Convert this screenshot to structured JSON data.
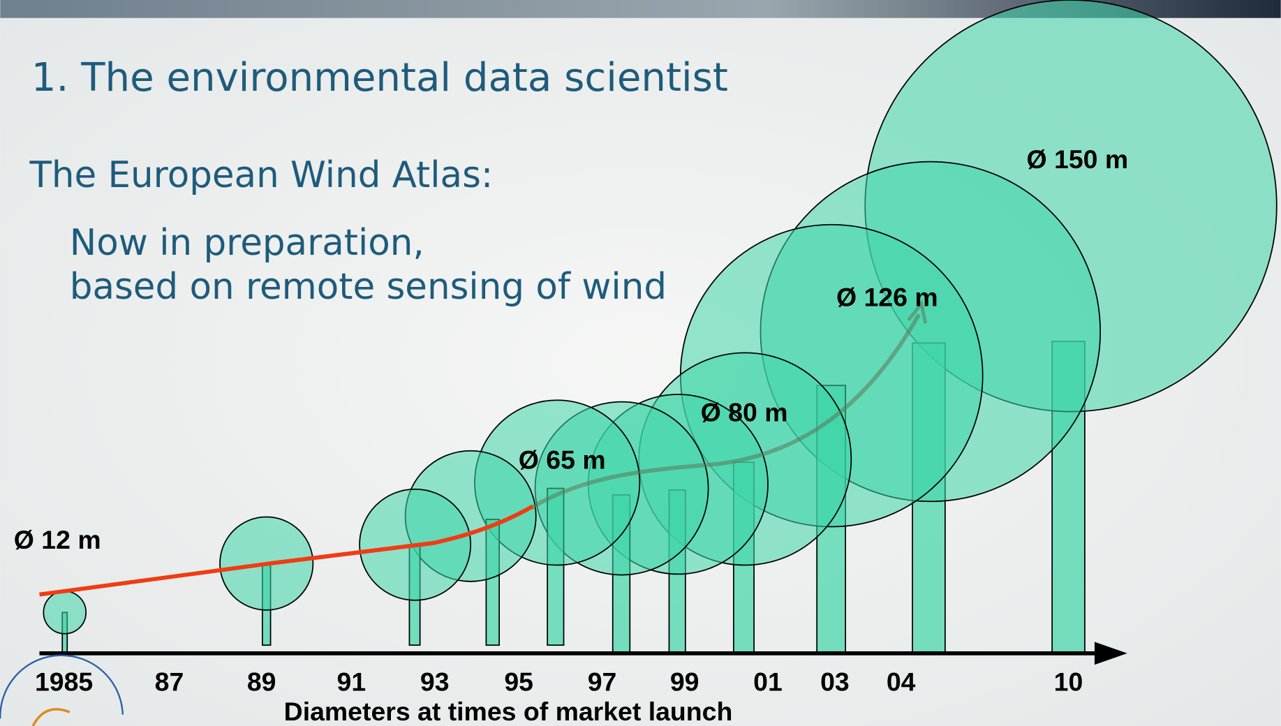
{
  "slide": {
    "title": "1.  The environmental data scientist",
    "heading": "The European Wind Atlas:",
    "body": [
      "Now in preparation,",
      "based on remote sensing of wind"
    ],
    "diagram": {
      "diameter_labels": [
        "Ø 12 m",
        "Ø 65 m",
        "Ø 80 m",
        "Ø 126 m",
        "Ø 150 m"
      ],
      "years": [
        "1985",
        "87",
        "89",
        "91",
        "93",
        "95",
        "97",
        "99",
        "01",
        "03",
        "04",
        "10"
      ],
      "caption": "Diameters at times of market launch"
    }
  }
}
